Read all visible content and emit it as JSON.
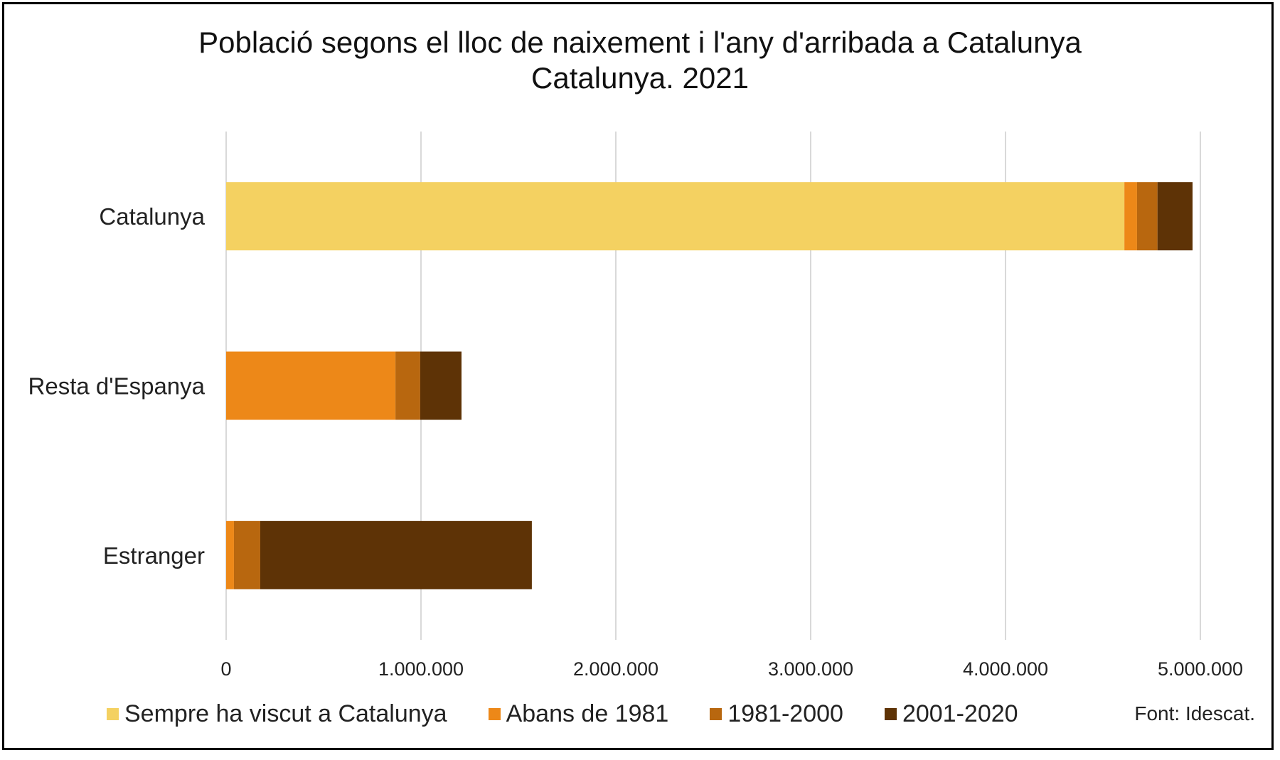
{
  "chart_data": {
    "type": "bar",
    "orientation": "horizontal",
    "stacked": true,
    "title": "Població segons el lloc de naixement  i l'any  d'arribada a Catalunya",
    "subtitle": "Catalunya.  2021",
    "categories": [
      "Catalunya",
      "Resta d'Espanya",
      "Estranger"
    ],
    "series": [
      {
        "name": "Sempre ha viscut a Catalunya",
        "color": "#F4D161",
        "values": [
          4610000,
          0,
          0
        ]
      },
      {
        "name": "Abans de 1981",
        "color": "#ED8818",
        "values": [
          65000,
          869000,
          40000
        ]
      },
      {
        "name": "1981-2000",
        "color": "#B8670F",
        "values": [
          105000,
          127000,
          135000
        ]
      },
      {
        "name": "2001-2020",
        "color": "#5E3306",
        "values": [
          180000,
          212000,
          1394000
        ]
      }
    ],
    "xlim": [
      0,
      5000000
    ],
    "xticks": [
      0,
      1000000,
      2000000,
      3000000,
      4000000,
      5000000
    ],
    "xtick_labels": [
      "0",
      "1.000.000",
      "2.000.000",
      "3.000.000",
      "4.000.000",
      "5.000.000"
    ],
    "grid": true,
    "legend_position": "bottom",
    "source": "Font: Idescat."
  }
}
